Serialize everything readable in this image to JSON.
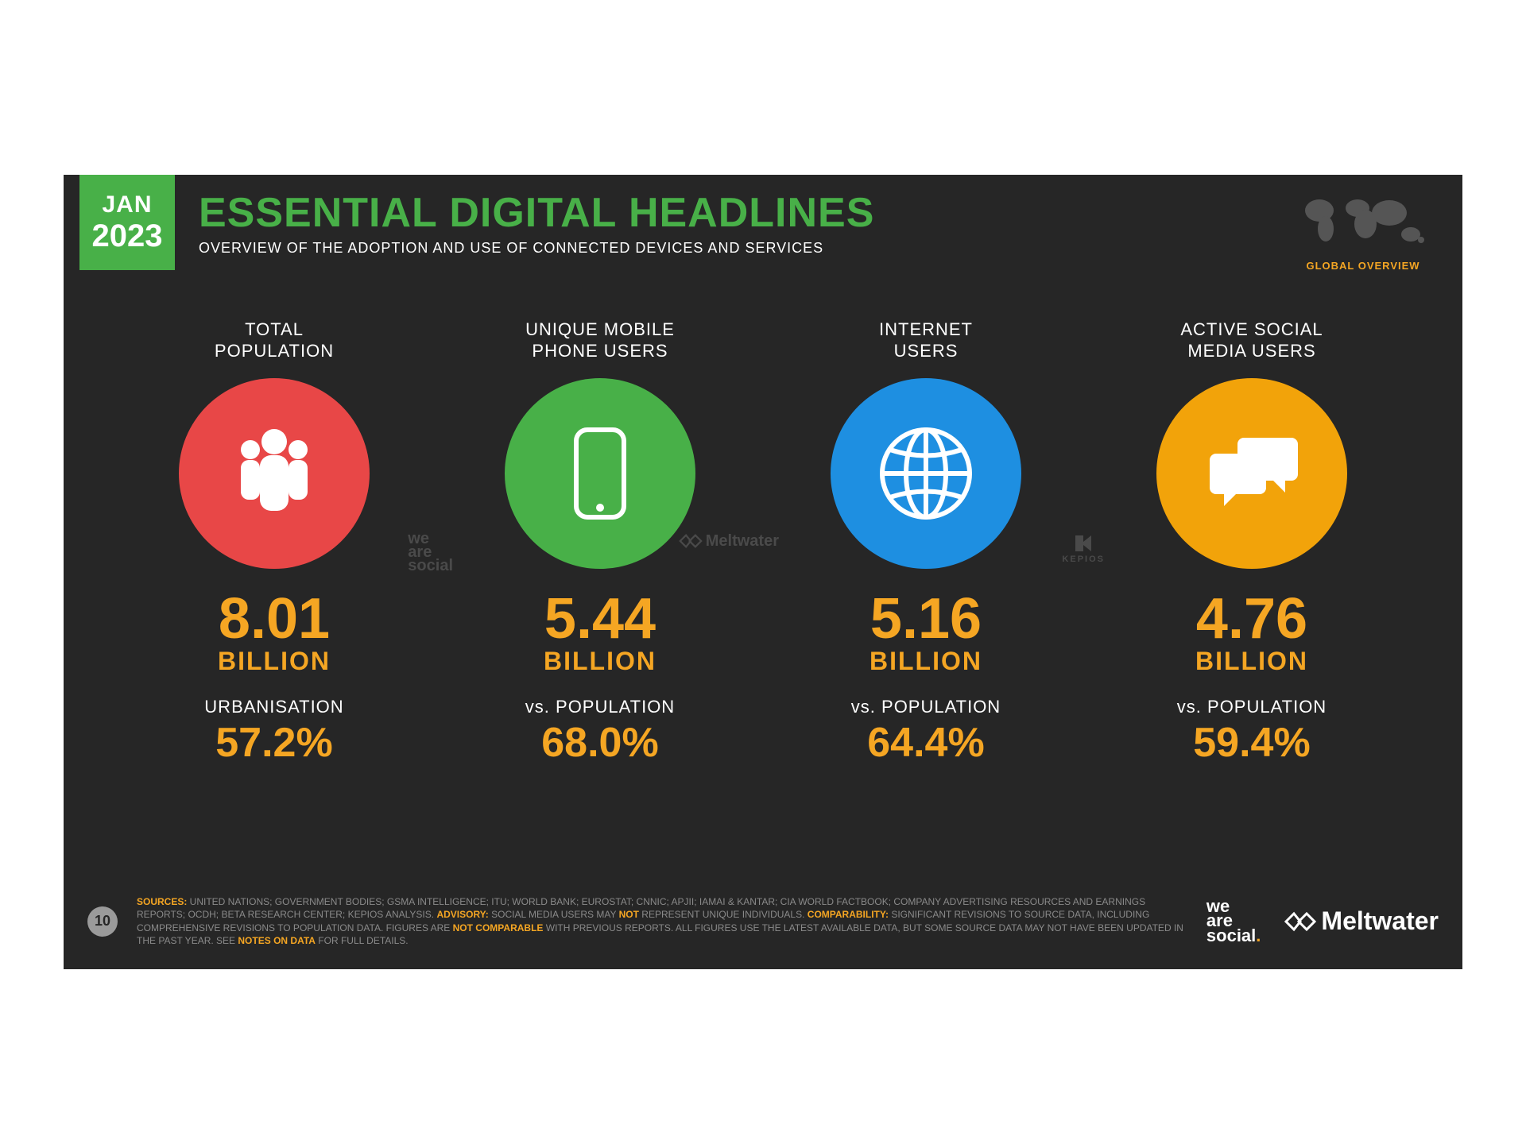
{
  "type": "infographic",
  "background_color": "#262626",
  "accent_color": "#f5a623",
  "green_color": "#48b048",
  "date_badge": {
    "month": "JAN",
    "year": "2023",
    "bg": "#48b048"
  },
  "header": {
    "title": "ESSENTIAL DIGITAL HEADLINES",
    "title_color": "#48b048",
    "title_fontsize": 52,
    "subtitle": "OVERVIEW OF THE ADOPTION AND USE OF CONNECTED DEVICES AND SERVICES",
    "subtitle_fontsize": 18
  },
  "global_overview_label": "GLOBAL OVERVIEW",
  "stats": [
    {
      "label_line1": "TOTAL",
      "label_line2": "POPULATION",
      "circle_color": "#e84747",
      "icon": "people",
      "value": "8.01",
      "unit": "BILLION",
      "sub_label": "URBANISATION",
      "sub_value": "57.2%",
      "watermark": "we are social"
    },
    {
      "label_line1": "UNIQUE MOBILE",
      "label_line2": "PHONE USERS",
      "circle_color": "#48b048",
      "icon": "phone",
      "value": "5.44",
      "unit": "BILLION",
      "sub_label": "vs. POPULATION",
      "sub_value": "68.0%",
      "watermark": "Meltwater"
    },
    {
      "label_line1": "INTERNET",
      "label_line2": "USERS",
      "circle_color": "#1e8fe1",
      "icon": "globe",
      "value": "5.16",
      "unit": "BILLION",
      "sub_label": "vs. POPULATION",
      "sub_value": "64.4%",
      "watermark": "KEPIOS"
    },
    {
      "label_line1": "ACTIVE SOCIAL",
      "label_line2": "MEDIA USERS",
      "circle_color": "#f2a30a",
      "icon": "chat",
      "value": "4.76",
      "unit": "BILLION",
      "sub_label": "vs. POPULATION",
      "sub_value": "59.4%",
      "watermark": ""
    }
  ],
  "footer": {
    "page": "10",
    "sources_prefix": "SOURCES:",
    "sources_text": " UNITED NATIONS; GOVERNMENT BODIES; GSMA INTELLIGENCE; ITU; WORLD BANK; EUROSTAT; CNNIC; APJII; IAMAI & KANTAR; CIA WORLD FACTBOOK; COMPANY ADVERTISING RESOURCES AND EARNINGS REPORTS; OCDH; BETA RESEARCH CENTER; KEPIOS ANALYSIS. ",
    "advisory_prefix": "ADVISORY:",
    "advisory_text_1": " SOCIAL MEDIA USERS MAY ",
    "advisory_not": "NOT",
    "advisory_text_2": " REPRESENT UNIQUE INDIVIDUALS. ",
    "comparability_prefix": "COMPARABILITY:",
    "comparability_text_1": " SIGNIFICANT REVISIONS TO SOURCE DATA, INCLUDING COMPREHENSIVE REVISIONS TO POPULATION DATA. FIGURES ARE ",
    "comparability_not": "NOT COMPARABLE",
    "comparability_text_2": " WITH PREVIOUS REPORTS. ALL FIGURES USE THE LATEST AVAILABLE DATA, BUT SOME SOURCE DATA MAY NOT HAVE BEEN UPDATED IN THE PAST YEAR. SEE ",
    "notes_link": "NOTES ON DATA",
    "comparability_text_3": " FOR FULL DETAILS.",
    "logo1": "we\nare\nsocial",
    "logo2": "Meltwater"
  }
}
